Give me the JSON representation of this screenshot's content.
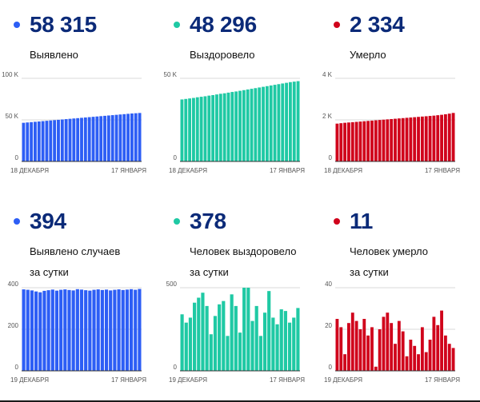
{
  "panels": [
    {
      "id": "cases-total",
      "value": "58 315",
      "label": "Выявлено",
      "color": "#2d5ef5",
      "chart_data": {
        "type": "bar",
        "y_ticks": [
          {
            "value": 0,
            "label": "0"
          },
          {
            "value": 50000,
            "label": "50 K"
          },
          {
            "value": 100000,
            "label": "100 K"
          }
        ],
        "ylim": [
          0,
          100000
        ],
        "x_start_label": "18 ДЕКАБРЯ",
        "x_end_label": "17 ЯНВАРЯ",
        "values": [
          46500,
          46900,
          47300,
          47700,
          48100,
          48500,
          48900,
          49300,
          49700,
          50100,
          50500,
          50900,
          51300,
          51700,
          52100,
          52500,
          52900,
          53300,
          53700,
          54100,
          54500,
          54900,
          55300,
          55700,
          56100,
          56500,
          56900,
          57300,
          57700,
          58000,
          58315
        ]
      }
    },
    {
      "id": "recovered-total",
      "value": "48 296",
      "label": "Выздоровело",
      "color": "#1fc9a4",
      "chart_data": {
        "type": "bar",
        "y_ticks": [
          {
            "value": 0,
            "label": "0"
          },
          {
            "value": 50000,
            "label": "50 K"
          }
        ],
        "ylim": [
          0,
          50000
        ],
        "x_start_label": "18 ДЕКАБРЯ",
        "x_end_label": "17 ЯНВАРЯ",
        "values": [
          37300,
          37600,
          37900,
          38200,
          38600,
          38900,
          39200,
          39600,
          39900,
          40300,
          40700,
          41000,
          41400,
          41800,
          42100,
          42500,
          42900,
          43300,
          43700,
          44100,
          44500,
          44900,
          45300,
          45700,
          46100,
          46500,
          46900,
          47300,
          47700,
          48000,
          48296
        ]
      }
    },
    {
      "id": "deaths-total",
      "value": "2 334",
      "label": "Умерло",
      "color": "#d0021b",
      "chart_data": {
        "type": "bar",
        "y_ticks": [
          {
            "value": 0,
            "label": "0"
          },
          {
            "value": 2000,
            "label": "2 K"
          },
          {
            "value": 4000,
            "label": "4 K"
          }
        ],
        "ylim": [
          0,
          4000
        ],
        "x_start_label": "18 ДЕКАБРЯ",
        "x_end_label": "17 ЯНВАРЯ",
        "values": [
          1820,
          1840,
          1860,
          1875,
          1890,
          1905,
          1920,
          1935,
          1950,
          1965,
          1980,
          1995,
          2010,
          2025,
          2040,
          2055,
          2070,
          2085,
          2100,
          2115,
          2130,
          2145,
          2160,
          2175,
          2190,
          2205,
          2225,
          2245,
          2270,
          2300,
          2334
        ]
      }
    },
    {
      "id": "cases-daily",
      "value": "394",
      "label": "Выявлено случаев\nза сутки",
      "color": "#2d5ef5",
      "chart_data": {
        "type": "bar",
        "y_ticks": [
          {
            "value": 0,
            "label": "0"
          },
          {
            "value": 200,
            "label": "200"
          },
          {
            "value": 400,
            "label": "400"
          }
        ],
        "ylim": [
          0,
          400
        ],
        "x_start_label": "19 ДЕКАБРЯ",
        "x_end_label": "17 ЯНВАРЯ",
        "values": [
          392,
          390,
          387,
          382,
          378,
          385,
          388,
          391,
          386,
          390,
          392,
          389,
          387,
          393,
          391,
          388,
          386,
          390,
          392,
          389,
          391,
          387,
          390,
          392,
          389,
          391,
          393,
          390,
          394
        ]
      }
    },
    {
      "id": "recovered-daily",
      "value": "378",
      "label": "Человек выздоровело\nза сутки",
      "color": "#1fc9a4",
      "chart_data": {
        "type": "bar",
        "y_ticks": [
          {
            "value": 0,
            "label": "0"
          },
          {
            "value": 500,
            "label": "500"
          }
        ],
        "ylim": [
          0,
          500
        ],
        "x_start_label": "19 ДЕКАБРЯ",
        "x_end_label": "17 ЯНВАРЯ",
        "values": [
          340,
          290,
          320,
          410,
          440,
          470,
          390,
          220,
          330,
          400,
          420,
          210,
          460,
          390,
          230,
          500,
          500,
          300,
          390,
          210,
          350,
          480,
          320,
          280,
          370,
          360,
          290,
          320,
          378
        ]
      }
    },
    {
      "id": "deaths-daily",
      "value": "11",
      "label": "Человек умерло\nза сутки",
      "color": "#d0021b",
      "chart_data": {
        "type": "bar",
        "y_ticks": [
          {
            "value": 0,
            "label": "0"
          },
          {
            "value": 20,
            "label": "20"
          },
          {
            "value": 40,
            "label": "40"
          }
        ],
        "ylim": [
          0,
          40
        ],
        "x_start_label": "19 ДЕКАБРЯ",
        "x_end_label": "17 ЯНВАРЯ",
        "values": [
          25,
          21,
          8,
          23,
          28,
          24,
          20,
          25,
          17,
          21,
          2,
          20,
          26,
          28,
          23,
          13,
          24,
          19,
          7,
          15,
          12,
          8,
          21,
          9,
          15,
          26,
          22,
          29,
          17,
          13,
          11
        ]
      }
    }
  ]
}
